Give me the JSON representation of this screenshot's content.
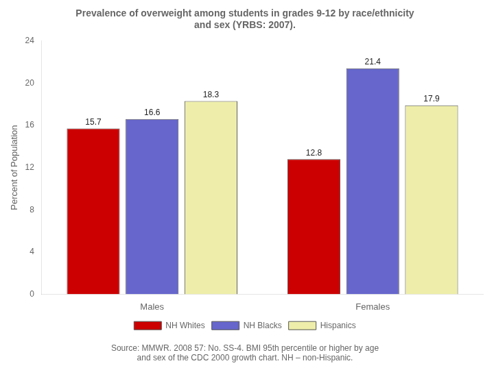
{
  "chart_data": {
    "type": "bar",
    "title": [
      "Prevalence of overweight among students in grades 9-12 by race/ethnicity",
      "and sex (YRBS: 2007)."
    ],
    "annotations": [
      "Source: MMWR. 2008 57: No. SS-4. BMI 95th percentile or higher by age",
      "and sex of the CDC 2000 growth chart. NH – non-Hispanic."
    ],
    "categories": [
      "Males",
      "Females"
    ],
    "series": [
      {
        "name": "NH Whites",
        "color": "#CC0000",
        "values": [
          15.7,
          12.8
        ]
      },
      {
        "name": "NH Blacks",
        "color": "#6666CC",
        "values": [
          16.6,
          21.4
        ]
      },
      {
        "name": "Hispanics",
        "color": "#EEEEAA",
        "values": [
          18.3,
          17.9
        ]
      }
    ],
    "ylabel": "Percent of Population",
    "ylim": [
      0,
      24
    ],
    "yticks": [
      0,
      4,
      8,
      12,
      16,
      20,
      24
    ],
    "grid": false,
    "legend": "bottom",
    "data_labels": true
  }
}
